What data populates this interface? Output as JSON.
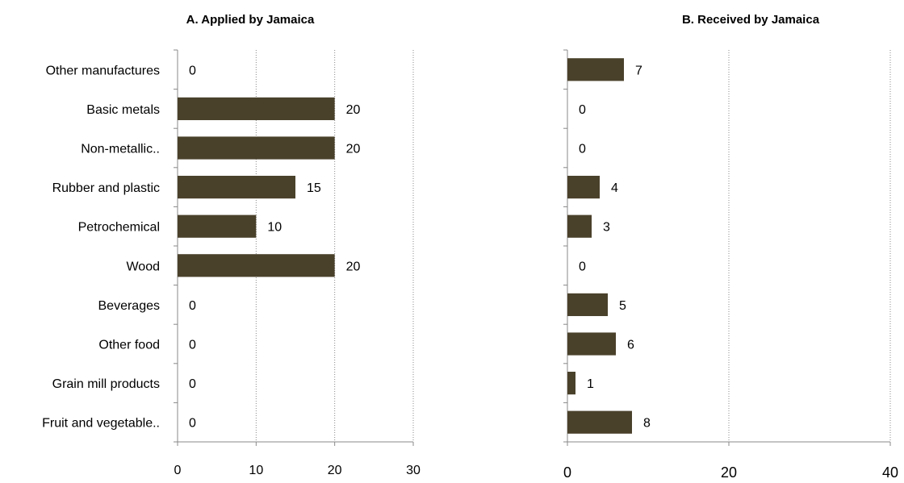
{
  "chart_data": [
    {
      "type": "bar",
      "orientation": "horizontal",
      "title": "A. Applied by Jamaica",
      "categories": [
        "Other manufactures",
        "Basic metals",
        "Non-metallic..",
        "Rubber and plastic",
        "Petrochemical",
        "Wood",
        "Beverages",
        "Other food",
        "Grain mill products",
        "Fruit and vegetable.."
      ],
      "values": [
        0,
        20,
        20,
        15,
        10,
        20,
        0,
        0,
        0,
        0
      ],
      "xlim": [
        0,
        30
      ],
      "xticks": [
        "0",
        "10",
        "20",
        "30"
      ],
      "grid": "vertical dotted",
      "bar_color": "#4a412b"
    },
    {
      "type": "bar",
      "orientation": "horizontal",
      "title": "B. Received by Jamaica",
      "categories": [
        "Other manufactures",
        "Basic metals",
        "Non-metallic..",
        "Rubber and plastic",
        "Petrochemical",
        "Wood",
        "Beverages",
        "Other food",
        "Grain mill products",
        "Fruit and vegetable.."
      ],
      "values": [
        7,
        0,
        0,
        4,
        3,
        0,
        5,
        6,
        1,
        8
      ],
      "value_labels": [
        "7",
        "0",
        "0",
        "4",
        "3",
        "0",
        "5",
        "6",
        "1",
        "8"
      ],
      "xlim": [
        0,
        40
      ],
      "xticks": [
        "0",
        "20",
        "40"
      ],
      "grid": "vertical dotted",
      "bar_color": "#4a412b"
    }
  ]
}
